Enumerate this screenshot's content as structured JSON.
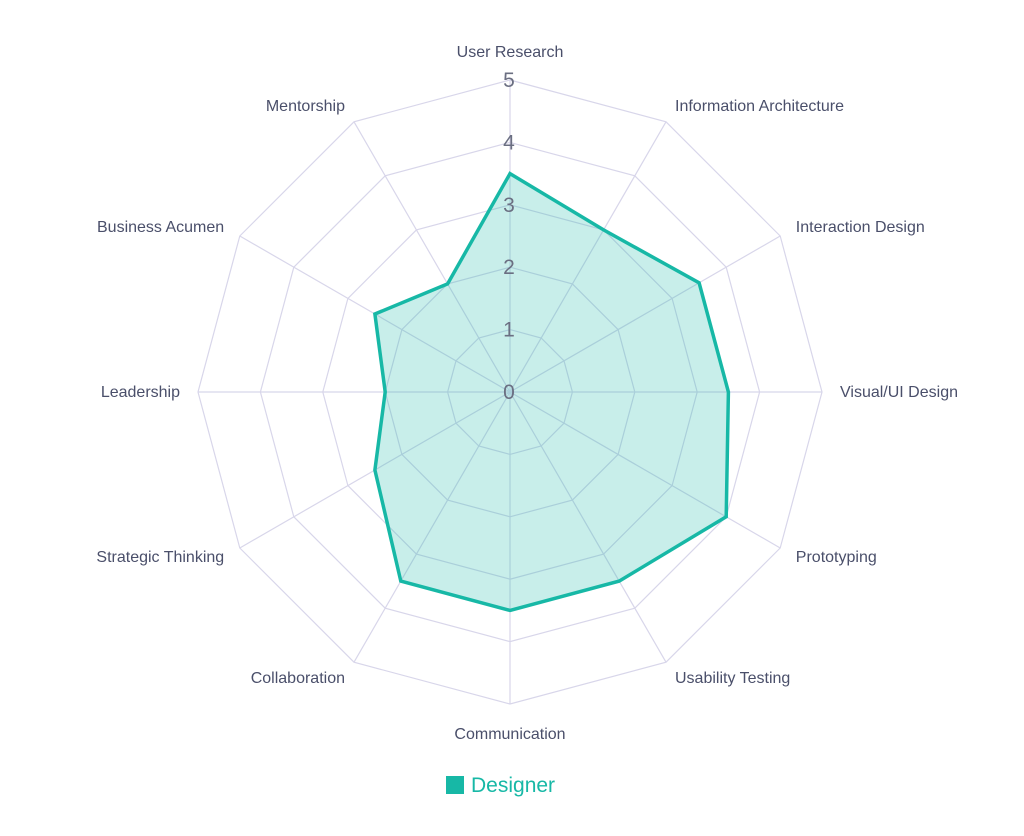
{
  "chart_data": {
    "type": "radar",
    "categories": [
      "User Research",
      "Information Architecture",
      "Interaction Design",
      "Visual/UI Design",
      "Prototyping",
      "Usability Testing",
      "Communication",
      "Collaboration",
      "Strategic Thinking",
      "Leadership",
      "Business Acumen",
      "Mentorship"
    ],
    "series": [
      {
        "name": "Designer",
        "values": [
          3.5,
          3.0,
          3.5,
          3.5,
          4.0,
          3.5,
          3.5,
          3.5,
          2.5,
          2.0,
          2.5,
          2.0
        ],
        "color": "#17b8a6",
        "fill": "rgba(23,184,166,0.24)"
      }
    ],
    "rlim": [
      0,
      5
    ],
    "ticks": [
      "0",
      "1",
      "2",
      "3",
      "4",
      "5"
    ],
    "grid": true,
    "grid_color": "#d8d6ea",
    "legend_position": "bottom"
  }
}
